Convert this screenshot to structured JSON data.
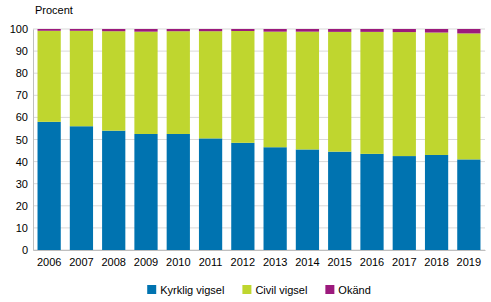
{
  "chart_data": {
    "type": "bar",
    "stacked": true,
    "y_label": "Procent",
    "categories": [
      "2006",
      "2007",
      "2008",
      "2009",
      "2010",
      "2011",
      "2012",
      "2013",
      "2014",
      "2015",
      "2016",
      "2017",
      "2018",
      "2019"
    ],
    "series": [
      {
        "name": "Kyrklig vigsel",
        "color": "#0073b0",
        "values": [
          58,
          56,
          54,
          52.5,
          52.5,
          50.5,
          48.5,
          46.5,
          45.5,
          44.5,
          43.5,
          42.5,
          43,
          41
        ]
      },
      {
        "name": "Civil vigsel",
        "color": "#bfd62f",
        "values": [
          41.2,
          43.2,
          45,
          46.3,
          46.5,
          48.5,
          50.6,
          52.3,
          53.3,
          54.2,
          55.2,
          56.1,
          55.4,
          57
        ]
      },
      {
        "name": "Okänd",
        "color": "#9c1a7d",
        "values": [
          0.8,
          0.8,
          1,
          1.2,
          1,
          1,
          0.9,
          1.2,
          1.2,
          1.3,
          1.3,
          1.4,
          1.6,
          2
        ]
      }
    ],
    "ylim": [
      0,
      100
    ],
    "yticks": [
      0,
      10,
      20,
      30,
      40,
      50,
      60,
      70,
      80,
      90,
      100
    ],
    "grid": true,
    "legend": "bottom"
  }
}
